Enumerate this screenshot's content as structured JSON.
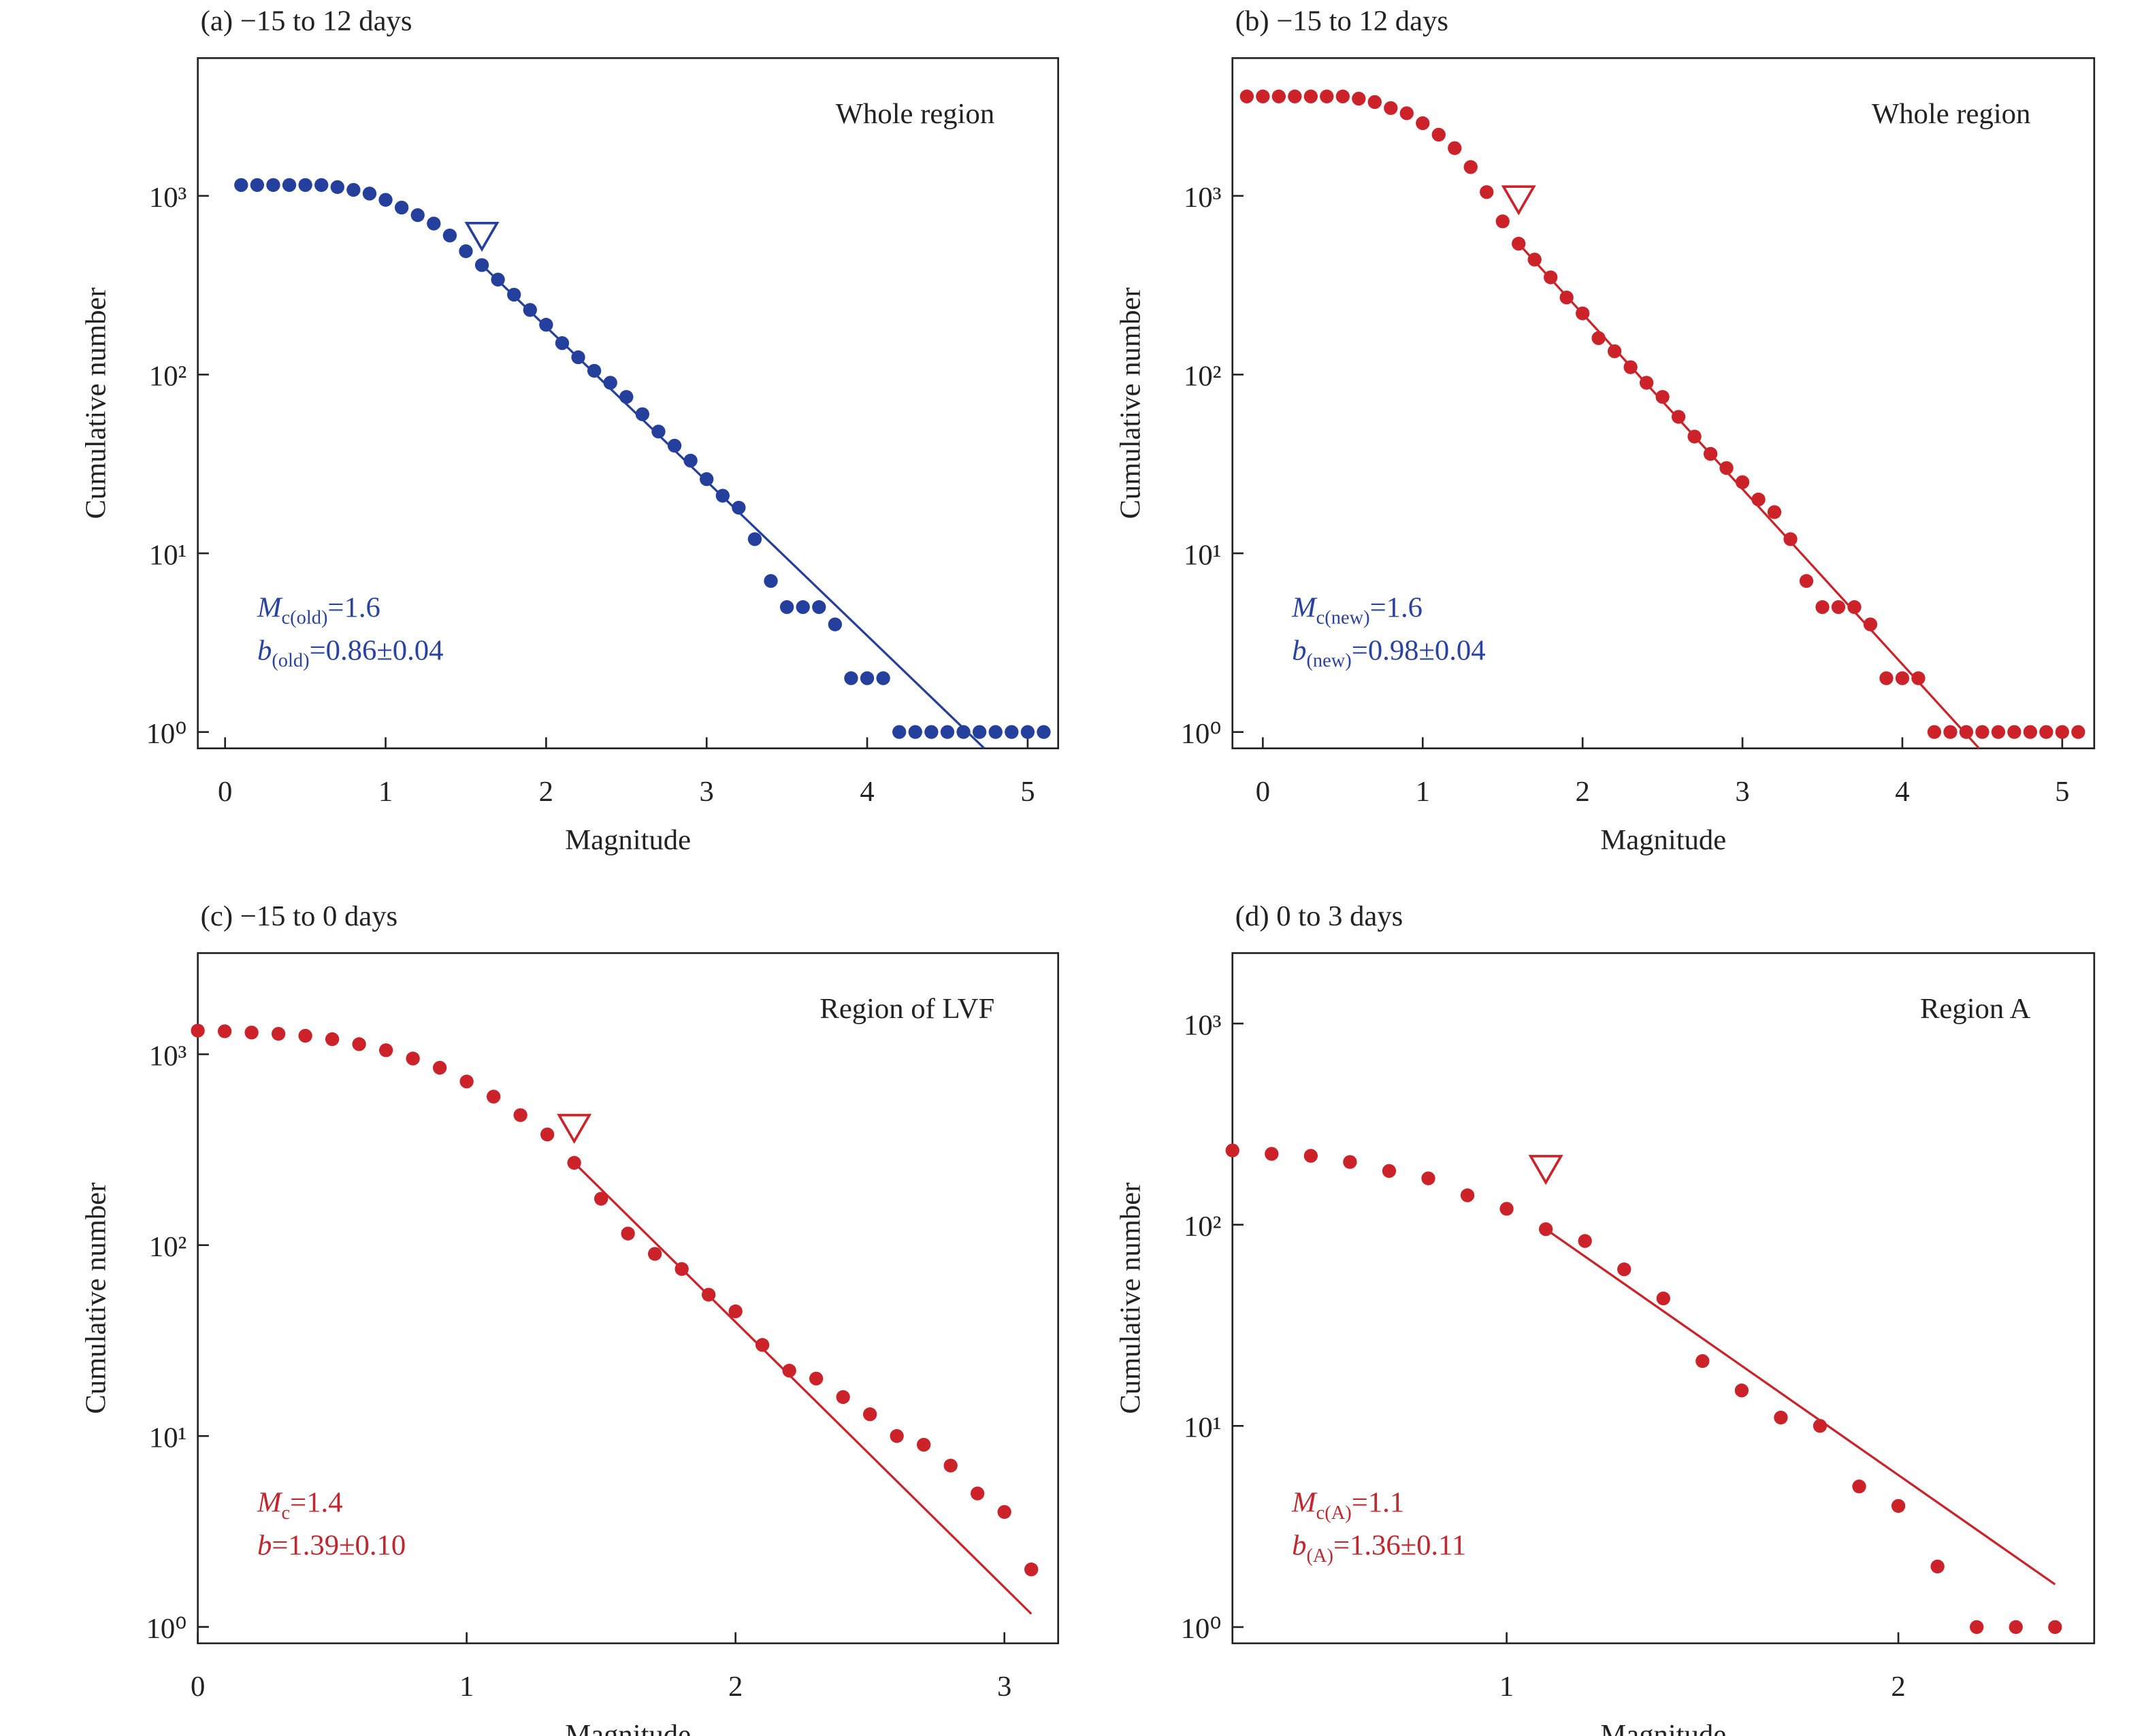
{
  "chart_data": [
    {
      "type": "scatter",
      "panel_title": "(a) −15 to 12 days",
      "region_label": "Whole region",
      "xlabel": "Magnitude",
      "ylabel": "Cumulative number",
      "log_scale": "y",
      "color": "#243f9c",
      "annotation_color": "#2a43a0",
      "x": [
        0.1,
        0.2,
        0.3,
        0.4,
        0.5,
        0.6,
        0.7,
        0.8,
        0.9,
        1.0,
        1.1,
        1.2,
        1.3,
        1.4,
        1.5,
        1.6,
        1.7,
        1.8,
        1.9,
        2.0,
        2.1,
        2.2,
        2.3,
        2.4,
        2.5,
        2.6,
        2.7,
        2.8,
        2.9,
        3.0,
        3.1,
        3.2,
        3.3,
        3.4,
        3.5,
        3.6,
        3.7,
        3.8,
        3.9,
        4.0,
        4.1,
        4.2,
        4.3,
        4.4,
        4.5,
        4.6,
        4.7,
        4.8,
        4.9,
        5.0,
        5.1
      ],
      "values": [
        1150,
        1150,
        1150,
        1150,
        1150,
        1150,
        1120,
        1080,
        1030,
        950,
        860,
        780,
        700,
        600,
        490,
        410,
        340,
        280,
        230,
        190,
        150,
        125,
        105,
        90,
        75,
        60,
        48,
        40,
        33,
        26,
        21,
        18,
        12,
        7,
        5,
        5,
        5,
        4,
        2,
        2,
        2,
        1,
        1,
        1,
        1,
        1,
        1,
        1,
        1,
        1,
        1
      ],
      "fit": {
        "x": [
          1.6,
          4.73
        ],
        "y": [
          410,
          0.81
        ]
      },
      "mc_marker": {
        "x": 1.6,
        "y": 600
      },
      "annotation": {
        "mc": {
          "symbol": "M",
          "subscript": "c(old)",
          "rest": "=1.6"
        },
        "b": {
          "symbol": "b",
          "subscript": "(old)",
          "rest": "=0.86±0.04"
        }
      },
      "xlim": [
        -0.17,
        5.19
      ],
      "xticks": [
        0,
        1,
        2,
        3,
        4,
        5
      ],
      "ylim": [
        0.81,
        5900
      ],
      "yticks": [
        {
          "value": 1,
          "label": "10⁰"
        },
        {
          "value": 10,
          "label": "10¹"
        },
        {
          "value": 100,
          "label": "10²"
        },
        {
          "value": 1000,
          "label": "10³"
        }
      ]
    },
    {
      "type": "scatter",
      "panel_title": "(b) −15 to 12 days",
      "region_label": "Whole region",
      "xlabel": "Magnitude",
      "ylabel": "Cumulative number",
      "log_scale": "y",
      "color": "#cc2229",
      "annotation_color": "#2a43a0",
      "x": [
        -0.1,
        0.0,
        0.1,
        0.2,
        0.3,
        0.4,
        0.5,
        0.6,
        0.7,
        0.8,
        0.9,
        1.0,
        1.1,
        1.2,
        1.3,
        1.4,
        1.5,
        1.6,
        1.7,
        1.8,
        1.9,
        2.0,
        2.1,
        2.2,
        2.3,
        2.4,
        2.5,
        2.6,
        2.7,
        2.8,
        2.9,
        3.0,
        3.1,
        3.2,
        3.3,
        3.4,
        3.5,
        3.6,
        3.7,
        3.8,
        3.9,
        4.0,
        4.1,
        4.2,
        4.3,
        4.4,
        4.5,
        4.6,
        4.7,
        4.8,
        4.9,
        5.0,
        5.1
      ],
      "values": [
        3600,
        3600,
        3600,
        3600,
        3600,
        3600,
        3600,
        3500,
        3350,
        3100,
        2900,
        2550,
        2200,
        1850,
        1450,
        1050,
        720,
        540,
        440,
        350,
        270,
        220,
        160,
        135,
        110,
        90,
        75,
        58,
        45,
        36,
        30,
        25,
        20,
        17,
        12,
        7,
        5,
        5,
        5,
        4,
        2,
        2,
        2,
        1,
        1,
        1,
        1,
        1,
        1,
        1,
        1,
        1,
        1
      ],
      "fit": {
        "x": [
          1.6,
          4.48
        ],
        "y": [
          540,
          0.81
        ]
      },
      "mc_marker": {
        "x": 1.6,
        "y": 960
      },
      "annotation": {
        "mc": {
          "symbol": "M",
          "subscript": "c(new)",
          "rest": "=1.6"
        },
        "b": {
          "symbol": "b",
          "subscript": "(new)",
          "rest": "=0.98±0.04"
        }
      },
      "xlim": [
        -0.19,
        5.2
      ],
      "xticks": [
        0,
        1,
        2,
        3,
        4,
        5
      ],
      "ylim": [
        0.81,
        5900
      ],
      "yticks": [
        {
          "value": 1,
          "label": "10⁰"
        },
        {
          "value": 10,
          "label": "10¹"
        },
        {
          "value": 100,
          "label": "10²"
        },
        {
          "value": 1000,
          "label": "10³"
        }
      ]
    },
    {
      "type": "scatter",
      "panel_title": "(c) −15 to 0 days",
      "region_label": "Region of LVF",
      "xlabel": "Magnitude",
      "ylabel": "Cumulative number",
      "log_scale": "y",
      "color": "#cc2229",
      "annotation_color": "#c0282f",
      "x": [
        0.0,
        0.1,
        0.2,
        0.3,
        0.4,
        0.5,
        0.6,
        0.7,
        0.8,
        0.9,
        1.0,
        1.1,
        1.2,
        1.3,
        1.4,
        1.5,
        1.6,
        1.7,
        1.8,
        1.9,
        2.0,
        2.1,
        2.2,
        2.3,
        2.4,
        2.5,
        2.6,
        2.7,
        2.8,
        2.9,
        3.0,
        3.1
      ],
      "values": [
        1330,
        1320,
        1300,
        1280,
        1250,
        1200,
        1130,
        1050,
        950,
        850,
        720,
        600,
        480,
        380,
        270,
        175,
        115,
        90,
        75,
        55,
        45,
        30,
        22,
        20,
        16,
        13,
        10,
        9,
        7,
        5,
        4,
        2
      ],
      "fit": {
        "x": [
          1.4,
          3.1
        ],
        "y": [
          270,
          1.17
        ]
      },
      "mc_marker": {
        "x": 1.4,
        "y": 413
      },
      "annotation": {
        "mc": {
          "symbol": "M",
          "subscript": "c",
          "rest": "=1.4"
        },
        "b": {
          "symbol": "b",
          "rest": "=1.39±0.10"
        }
      },
      "xlim": [
        0,
        3.2
      ],
      "xticks": [
        0,
        1,
        2,
        3
      ],
      "ylim": [
        0.82,
        3390
      ],
      "yticks": [
        {
          "value": 1,
          "label": "10⁰"
        },
        {
          "value": 10,
          "label": "10¹"
        },
        {
          "value": 100,
          "label": "10²"
        },
        {
          "value": 1000,
          "label": "10³"
        }
      ]
    },
    {
      "type": "scatter",
      "panel_title": "(d) 0 to 3 days",
      "region_label": "Region A",
      "xlabel": "Magnitude",
      "ylabel": "Cumulative number",
      "log_scale": "y",
      "color": "#cc2229",
      "annotation_color": "#c0282f",
      "x": [
        0.3,
        0.4,
        0.5,
        0.6,
        0.7,
        0.8,
        0.9,
        1.0,
        1.1,
        1.2,
        1.3,
        1.4,
        1.5,
        1.6,
        1.7,
        1.8,
        1.9,
        2.0,
        2.1,
        2.2,
        2.3,
        2.4
      ],
      "values": [
        234,
        225,
        220,
        205,
        185,
        170,
        140,
        120,
        95,
        83,
        60,
        43,
        21,
        15,
        11,
        10,
        5,
        4,
        2,
        1,
        1,
        1
      ],
      "fit": {
        "x": [
          1.1,
          2.4
        ],
        "y": [
          95,
          1.63
        ]
      },
      "mc_marker": {
        "x": 1.1,
        "y": 190
      },
      "annotation": {
        "mc": {
          "symbol": "M",
          "subscript": "c(A)",
          "rest": "=1.1"
        },
        "b": {
          "symbol": "b",
          "subscript": "(A)",
          "rest": "=1.36±0.11"
        }
      },
      "xlim": [
        0.3,
        2.5
      ],
      "xticks": [
        1,
        2
      ],
      "ylim": [
        0.83,
        2240
      ],
      "yticks": [
        {
          "value": 1,
          "label": "10⁰"
        },
        {
          "value": 10,
          "label": "10¹"
        },
        {
          "value": 100,
          "label": "10²"
        },
        {
          "value": 1000,
          "label": "10³"
        }
      ]
    }
  ]
}
